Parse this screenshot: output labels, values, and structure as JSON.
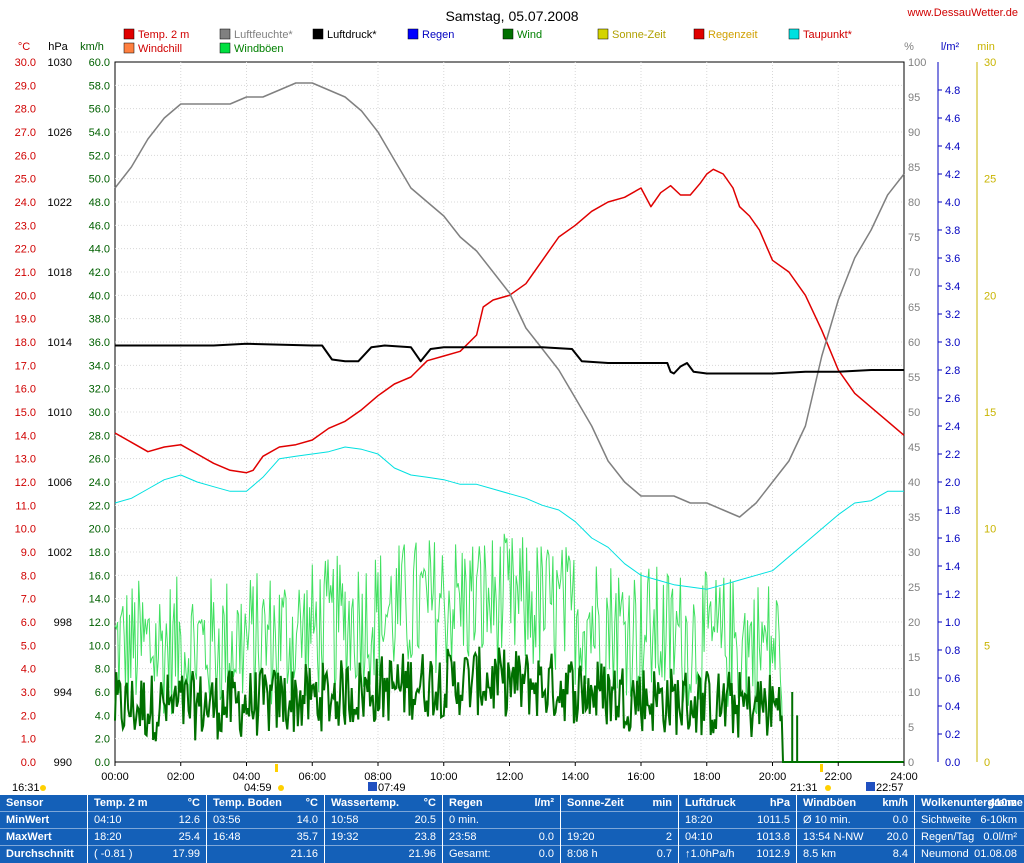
{
  "chart_data": {
    "type": "line",
    "title": "Samstag, 05.07.2008",
    "site": "www.DessauWetter.de",
    "x_ticks": [
      "00:00",
      "02:00",
      "04:00",
      "06:00",
      "08:00",
      "10:00",
      "12:00",
      "14:00",
      "16:00",
      "18:00",
      "20:00",
      "22:00",
      "24:00"
    ],
    "axes": {
      "temp": {
        "unit": "°C",
        "range": [
          0,
          30
        ],
        "step": 1,
        "color": "#d00000"
      },
      "pressure": {
        "unit": "hPa",
        "range": [
          990,
          1030
        ],
        "step": 2,
        "color": "#000000"
      },
      "wind": {
        "unit": "km/h",
        "range": [
          0,
          60
        ],
        "step": 2,
        "color": "#006000"
      },
      "humidity": {
        "unit": "%",
        "range": [
          0,
          100
        ],
        "step": 5,
        "color": "#808080"
      },
      "rain": {
        "unit": "l/m²",
        "range": [
          0,
          5
        ],
        "step": 0.2,
        "color": "#0000c0"
      },
      "sun": {
        "unit": "min",
        "range": [
          0,
          30
        ],
        "step": 5,
        "color": "#c8b400"
      }
    },
    "legend": [
      {
        "label": "Temp. 2 m",
        "color": "#e00000",
        "text_color": "#d00000"
      },
      {
        "label": "Windchill",
        "color": "#ff8040",
        "text_color": "#d00000"
      },
      {
        "label": "Luftfeuchte*",
        "color": "#808080",
        "text_color": "#808080"
      },
      {
        "label": "Windböen",
        "color": "#00e040",
        "text_color": "#008000"
      },
      {
        "label": "Luftdruck*",
        "color": "#000000",
        "text_color": "#000000"
      },
      {
        "label": "Regen",
        "color": "#0000ff",
        "text_color": "#0000c0"
      },
      {
        "label": "Wind",
        "color": "#007000",
        "text_color": "#008000"
      },
      {
        "label": "Sonne-Zeit",
        "color": "#d4d400",
        "text_color": "#b0a000"
      },
      {
        "label": "Regenzeit",
        "color": "#e00000",
        "text_color": "#d0a000"
      },
      {
        "label": "Taupunkt*",
        "color": "#00e0e0",
        "text_color": "#d00000"
      }
    ],
    "series": [
      {
        "name": "Temp. 2 m",
        "axis": "temp",
        "color": "#e00000",
        "width": 1.5,
        "x": [
          0,
          0.5,
          1,
          1.5,
          2,
          2.5,
          3,
          3.5,
          4,
          4.2,
          4.5,
          5,
          5.5,
          6,
          6.5,
          7,
          7.5,
          8,
          8.5,
          9,
          9.5,
          10,
          10.5,
          11,
          11.2,
          11.5,
          12,
          12.5,
          13,
          13.5,
          14,
          14.5,
          15,
          15.5,
          16,
          16.3,
          16.6,
          16.9,
          17.2,
          17.5,
          17.8,
          18,
          18.2,
          18.5,
          18.8,
          19,
          19.3,
          19.6,
          20,
          20.5,
          21,
          21.5,
          22,
          22.5,
          23,
          23.5,
          24
        ],
        "y": [
          14.1,
          13.7,
          13.3,
          13.5,
          13.6,
          13.2,
          12.8,
          12.5,
          12.4,
          12.5,
          13.1,
          13.5,
          13.6,
          13.8,
          14.3,
          14.6,
          15.1,
          15.7,
          16.2,
          16.5,
          17.2,
          17.4,
          17.6,
          18.3,
          19.5,
          19.8,
          20.0,
          20.5,
          21.5,
          22.5,
          23.0,
          23.6,
          24.0,
          24.2,
          24.6,
          23.8,
          24.4,
          24.7,
          24.3,
          24.3,
          24.8,
          25.2,
          25.4,
          25.2,
          24.6,
          23.8,
          23.4,
          22.8,
          21.5,
          21.0,
          20.0,
          18.5,
          16.8,
          15.8,
          15.2,
          14.6,
          14.0
        ]
      },
      {
        "name": "Luftfeuchte*",
        "axis": "humidity",
        "color": "#808080",
        "width": 1.5,
        "x": [
          0,
          0.5,
          1,
          1.5,
          2,
          2.5,
          3,
          3.5,
          4,
          4.5,
          5,
          5.5,
          6,
          6.5,
          7,
          7.5,
          8,
          8.5,
          9,
          9.5,
          10,
          10.5,
          11,
          11.5,
          12,
          12.5,
          13,
          13.5,
          14,
          14.5,
          15,
          15.5,
          16,
          16.5,
          17,
          17.5,
          18,
          18.5,
          19,
          19.5,
          20,
          20.5,
          21,
          21.5,
          22,
          22.5,
          23,
          23.5,
          24
        ],
        "y": [
          82,
          85,
          89,
          92,
          94,
          94,
          94,
          94,
          95,
          95,
          96,
          97,
          97,
          96,
          95,
          93,
          90,
          86,
          82,
          80,
          78,
          75,
          73,
          70,
          67,
          62,
          59,
          56,
          52,
          48,
          43,
          40,
          38,
          38,
          38,
          37,
          37,
          36,
          35,
          37,
          40,
          43,
          48,
          58,
          66,
          72,
          76,
          81,
          84
        ]
      },
      {
        "name": "Luftdruck*",
        "axis": "pressure",
        "color": "#000000",
        "width": 2,
        "x": [
          0,
          3,
          4,
          6,
          6.3,
          6.6,
          7,
          7.4,
          7.8,
          8.2,
          9,
          9.3,
          9.6,
          10,
          12,
          13,
          13.9,
          14.2,
          15,
          16,
          16.8,
          16.9,
          17,
          17.2,
          17.4,
          17.6,
          18,
          19,
          20,
          21,
          22,
          23,
          24
        ],
        "y": [
          1013.8,
          1013.8,
          1013.9,
          1013.8,
          1013.8,
          1013.0,
          1012.9,
          1012.9,
          1013.7,
          1013.8,
          1013.7,
          1012.9,
          1013.6,
          1013.7,
          1013.7,
          1013.7,
          1013.6,
          1012.9,
          1012.8,
          1012.8,
          1012.8,
          1012.3,
          1012.2,
          1012.6,
          1012.8,
          1012.3,
          1012.2,
          1012.2,
          1012.2,
          1012.3,
          1012.3,
          1012.4,
          1012.4
        ]
      },
      {
        "name": "Taupunkt*",
        "axis": "temp",
        "color": "#00e0e0",
        "width": 1,
        "x": [
          0,
          0.5,
          1,
          1.5,
          2,
          2.5,
          3,
          3.5,
          4,
          4.5,
          5,
          5.5,
          6,
          6.5,
          7,
          7.5,
          8,
          8.5,
          9,
          9.5,
          10,
          10.5,
          11,
          11.5,
          12,
          12.5,
          13,
          13.5,
          14,
          14.5,
          15,
          15.5,
          16,
          16.5,
          17,
          17.5,
          18,
          18.5,
          19,
          19.5,
          20,
          20.5,
          21,
          21.5,
          22,
          22.5,
          23,
          23.5,
          24
        ],
        "y": [
          11.1,
          11.3,
          11.7,
          12.1,
          12.3,
          12.0,
          11.8,
          11.6,
          11.6,
          12.2,
          13.0,
          13.1,
          13.2,
          13.3,
          13.5,
          13.4,
          13.2,
          12.6,
          12.3,
          12.2,
          12.1,
          11.9,
          11.9,
          11.7,
          11.5,
          11.3,
          11.0,
          10.8,
          10.3,
          9.6,
          9.2,
          8.5,
          8.0,
          7.8,
          7.6,
          7.5,
          7.4,
          7.6,
          7.8,
          8.0,
          8.2,
          8.8,
          9.4,
          10.0,
          10.6,
          11.1,
          11.2,
          11.6,
          11.6
        ]
      }
    ],
    "sunshine_min": [
      {
        "from": 9.25,
        "to": 9.4,
        "value": 5
      },
      {
        "from": 10.2,
        "to": 10.3,
        "value": 5
      },
      {
        "from": 10.8,
        "to": 14.0,
        "value": 5
      },
      {
        "from": 14.0,
        "to": 16.5,
        "value": 5
      },
      {
        "from": 16.6,
        "to": 17.2,
        "value": 5
      },
      {
        "from": 17.3,
        "to": 19.4,
        "value": 5
      }
    ],
    "sun_markers": {
      "sunrise": "04:59",
      "sunset": "21:31",
      "sunrise_prev_label": "16:31",
      "moonrise": "07:49",
      "moonset": "22:57"
    }
  },
  "stats": {
    "columns": [
      {
        "title": "Sensor",
        "unit": "",
        "rows": [
          [
            "MinWert",
            ""
          ],
          [
            "MaxWert",
            ""
          ],
          [
            "Durchschnitt",
            ""
          ]
        ]
      },
      {
        "title": "Temp. 2 m",
        "unit": "°C",
        "rows": [
          [
            "04:10",
            "12.6"
          ],
          [
            "18:20",
            "25.4"
          ],
          [
            "( -0.81 )",
            "17.99"
          ]
        ]
      },
      {
        "title": "Temp. Boden",
        "unit": "°C",
        "rows": [
          [
            "03:56",
            "14.0"
          ],
          [
            "16:48",
            "35.7"
          ],
          [
            "",
            "21.16"
          ]
        ]
      },
      {
        "title": "Wassertemp.",
        "unit": "°C",
        "rows": [
          [
            "10:58",
            "20.5"
          ],
          [
            "19:32",
            "23.8"
          ],
          [
            "",
            "21.96"
          ]
        ]
      },
      {
        "title": "Regen",
        "unit": "l/m²",
        "rows": [
          [
            "0 min.",
            ""
          ],
          [
            "23:58",
            "0.0"
          ],
          [
            "Gesamt:",
            "0.0"
          ]
        ]
      },
      {
        "title": "Sonne-Zeit",
        "unit": "min",
        "rows": [
          [
            "",
            ""
          ],
          [
            "19:20",
            "2"
          ],
          [
            "8:08 h",
            "0.7"
          ]
        ]
      },
      {
        "title": "Luftdruck",
        "unit": "hPa",
        "rows": [
          [
            "18:20",
            "1011.5"
          ],
          [
            "04:10",
            "1013.8"
          ],
          [
            "↑1.0hPa/h",
            "1012.9"
          ]
        ]
      },
      {
        "title": "Windböen",
        "unit": "km/h",
        "rows": [
          [
            "Ø 10 min.",
            "0.0"
          ],
          [
            "13:54   N-NW",
            "20.0"
          ],
          [
            "8.5 km",
            "8.4"
          ]
        ]
      },
      {
        "title": "Wolkenuntergrenze",
        "unit": "410m",
        "rows": [
          [
            "Sichtweite",
            "6-10km"
          ],
          [
            "Regen/Tag",
            "0.0l/m²"
          ],
          [
            "Neumond",
            "01.08.08"
          ]
        ]
      }
    ]
  }
}
